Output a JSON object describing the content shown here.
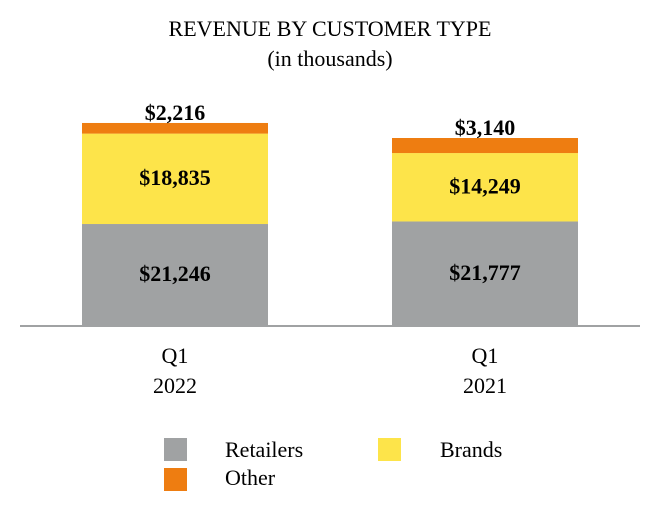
{
  "chart_data": {
    "type": "stacked_bar",
    "title": "REVENUE BY CUSTOMER TYPE",
    "subtitle": "(in thousands)",
    "categories": [
      [
        "Q1",
        "2022"
      ],
      [
        "Q1",
        "2021"
      ]
    ],
    "series": [
      {
        "name": "Retailers",
        "color": "#a0a2a3",
        "values": [
          21246,
          21777
        ],
        "value_labels": [
          "$21,246",
          "$21,777"
        ]
      },
      {
        "name": "Brands",
        "color": "#fde44a",
        "values": [
          18835,
          14249
        ],
        "value_labels": [
          "$18,835",
          "$14,249"
        ]
      },
      {
        "name": "Other",
        "color": "#ee7d11",
        "values": [
          2216,
          3140
        ],
        "value_labels": [
          "$2,216",
          "$3,140"
        ]
      }
    ]
  }
}
